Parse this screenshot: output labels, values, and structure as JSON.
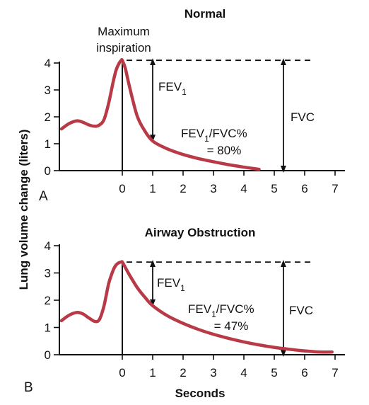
{
  "colors": {
    "curve": "#b83a46",
    "axis": "#111111"
  },
  "y_axis_title": "Lung volume change (liters)",
  "x_axis_title": "Seconds",
  "chart_data": [
    {
      "type": "line",
      "panel_letter": "A",
      "title": "Normal",
      "xticks": [
        0,
        1,
        2,
        3,
        4,
        5,
        6,
        7
      ],
      "yticks": [
        0,
        1,
        2,
        3,
        4
      ],
      "xlim": [
        -2.0,
        7.5
      ],
      "ylim": [
        0,
        4.2
      ],
      "annotations": {
        "peak_label_line1": "Maximum",
        "peak_label_line2": "inspiration",
        "fev1_main": "FEV",
        "fev1_sub": "1",
        "ratio_main": "FEV",
        "ratio_sub": "1",
        "ratio_tail": "/FVC%",
        "ratio_value": "= 80%",
        "fvc": "FVC"
      },
      "fev1_at_x": 1.0,
      "fvc_at_x": 5.3,
      "peak_level": 4.1,
      "x": [
        -2.0,
        -1.75,
        -1.5,
        -1.3,
        -1.1,
        -0.9,
        -0.75,
        -0.6,
        -0.45,
        -0.3,
        -0.2,
        -0.1,
        -0.03,
        0.0,
        0.1,
        0.2,
        0.35,
        0.5,
        0.7,
        1.0,
        1.5,
        2.0,
        2.5,
        3.0,
        3.5,
        4.0,
        4.5
      ],
      "series": [
        {
          "values": [
            1.55,
            1.75,
            1.85,
            1.8,
            1.7,
            1.65,
            1.7,
            1.9,
            2.5,
            3.3,
            3.75,
            4.0,
            4.1,
            4.1,
            3.8,
            3.3,
            2.6,
            2.0,
            1.55,
            1.1,
            0.8,
            0.6,
            0.45,
            0.33,
            0.22,
            0.13,
            0.05
          ]
        }
      ]
    },
    {
      "type": "line",
      "panel_letter": "B",
      "title": "Airway Obstruction",
      "xticks": [
        0,
        1,
        2,
        3,
        4,
        5,
        6,
        7
      ],
      "yticks": [
        0,
        1,
        2,
        3,
        4
      ],
      "xlim": [
        -2.0,
        7.5
      ],
      "ylim": [
        0,
        4.2
      ],
      "annotations": {
        "fev1_main": "FEV",
        "fev1_sub": "1",
        "ratio_main": "FEV",
        "ratio_sub": "1",
        "ratio_tail": "/FVC%",
        "ratio_value": "= 47%",
        "fvc": "FVC"
      },
      "fev1_at_x": 1.0,
      "fvc_at_x": 5.3,
      "peak_level": 3.4,
      "x": [
        -2.0,
        -1.75,
        -1.5,
        -1.3,
        -1.1,
        -0.9,
        -0.75,
        -0.6,
        -0.45,
        -0.3,
        -0.2,
        -0.1,
        -0.03,
        0.0,
        0.1,
        0.25,
        0.5,
        0.75,
        1.0,
        1.5,
        2.0,
        2.5,
        3.0,
        3.5,
        4.0,
        4.5,
        5.0,
        5.5,
        6.0,
        6.5,
        6.9
      ],
      "series": [
        {
          "values": [
            1.25,
            1.45,
            1.55,
            1.5,
            1.35,
            1.22,
            1.3,
            1.8,
            2.6,
            3.1,
            3.3,
            3.38,
            3.4,
            3.4,
            3.2,
            2.9,
            2.45,
            2.1,
            1.8,
            1.42,
            1.15,
            0.93,
            0.75,
            0.6,
            0.47,
            0.36,
            0.27,
            0.2,
            0.14,
            0.1,
            0.1
          ]
        }
      ]
    }
  ]
}
